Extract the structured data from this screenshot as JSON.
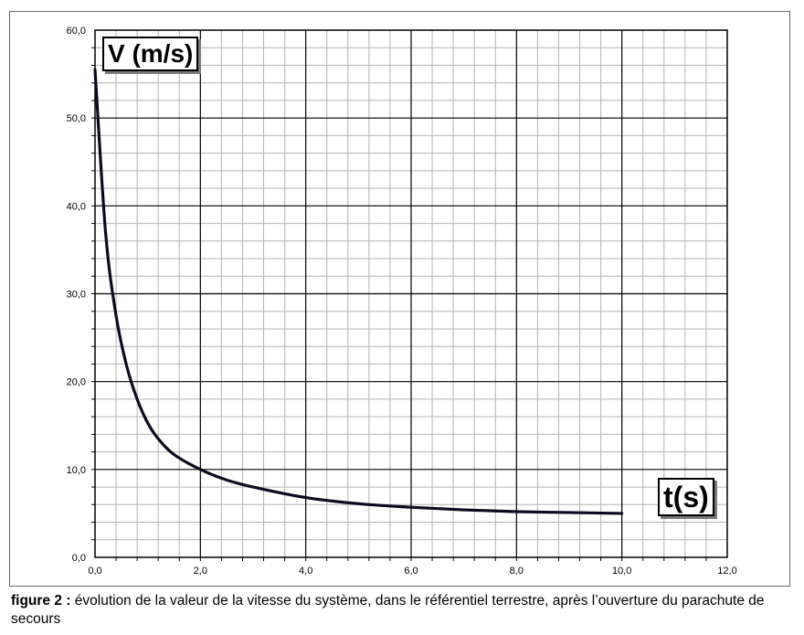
{
  "chart_data": {
    "type": "line",
    "ylabel": "V (m/s)",
    "xlabel": "t(s)",
    "xlim": [
      0,
      12
    ],
    "ylim": [
      0,
      60
    ],
    "x_ticks": [
      "0,0",
      "2,0",
      "4,0",
      "6,0",
      "8,0",
      "10,0",
      "12,0"
    ],
    "y_ticks": [
      "0,0",
      "10,0",
      "20,0",
      "30,0",
      "40,0",
      "50,0",
      "60,0"
    ],
    "grid": true,
    "series": [
      {
        "x": [
          0,
          0.2,
          0.4,
          0.6,
          0.8,
          1.0,
          1.2,
          1.5,
          2.0,
          2.5,
          3.0,
          4.0,
          5.0,
          6.0,
          7.0,
          8.0,
          9.0,
          10.0
        ],
        "y": [
          55.5,
          37.0,
          27.5,
          21.8,
          18.0,
          15.3,
          13.5,
          11.7,
          10.0,
          8.8,
          8.0,
          6.8,
          6.1,
          5.7,
          5.4,
          5.2,
          5.1,
          5.0
        ],
        "color": "#0d0a1f"
      }
    ]
  },
  "caption": {
    "label": "figure 2 :",
    "text": " évolution de la valeur de la vitesse du système, dans le référentiel terrestre, après l’ouverture du parachute de secours"
  }
}
